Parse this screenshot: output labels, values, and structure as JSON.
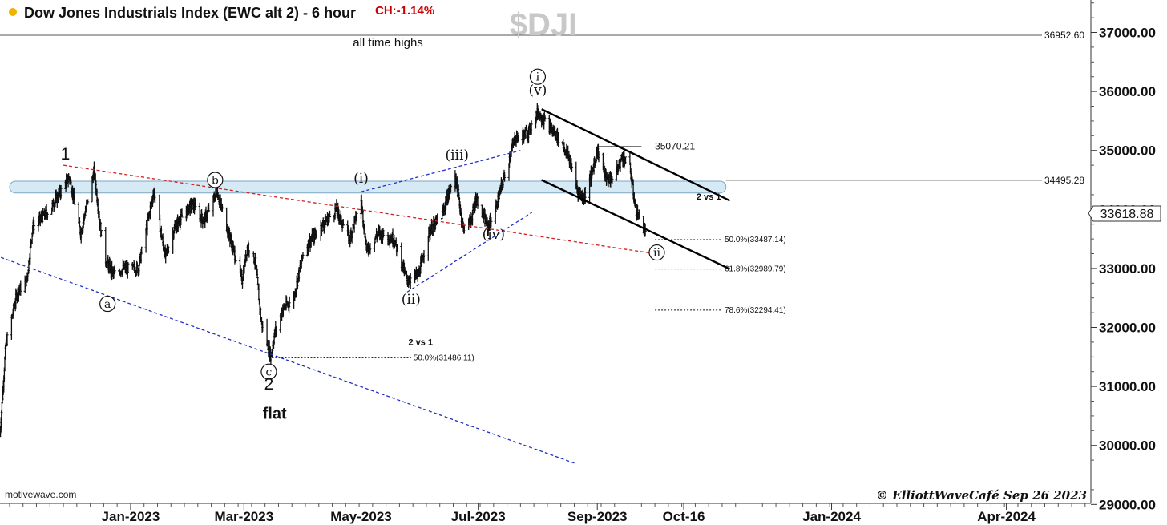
{
  "header": {
    "status_dot_color": "#f0b400",
    "title": "Dow Jones Industrials Index (EWC alt 2) - 6 hour",
    "change": "CH:-1.14%",
    "change_color": "#cc0000",
    "symbol": "$DJI"
  },
  "footer": {
    "source": "motivewave.com",
    "credit": "© ElliottWaveCafé Sep 26 2023"
  },
  "price_badge": "33618.88",
  "chart_data": {
    "type": "candlestick",
    "x_axis": {
      "tick_labels": [
        "Jan-2023",
        "Mar-2023",
        "May-2023",
        "Jul-2023",
        "Sep-2023",
        "Oct-16",
        "Jan-2024",
        "Apr-2024"
      ],
      "range": [
        "2022-10-25",
        "2024-05-20"
      ]
    },
    "y_axis": {
      "range": [
        29000,
        37000
      ],
      "tick_labels": [
        "37000.00",
        "36000.00",
        "35000.00",
        "34000.00",
        "33000.00",
        "32000.00",
        "31000.00",
        "30000.00",
        "29000.00"
      ],
      "position": "right",
      "grid": false
    },
    "price_anchors": [
      {
        "date": "2022-10-25",
        "price": 30200
      },
      {
        "date": "2022-10-28",
        "price": 31700
      },
      {
        "date": "2022-11-03",
        "price": 32600
      },
      {
        "date": "2022-11-08",
        "price": 32800
      },
      {
        "date": "2022-11-11",
        "price": 33700
      },
      {
        "date": "2022-11-20",
        "price": 34000
      },
      {
        "date": "2022-11-30",
        "price": 34550
      },
      {
        "date": "2022-12-06",
        "price": 33600
      },
      {
        "date": "2022-12-13",
        "price": 34650
      },
      {
        "date": "2022-12-18",
        "price": 33200
      },
      {
        "date": "2022-12-23",
        "price": 32900
      },
      {
        "date": "2022-12-28",
        "price": 33000
      },
      {
        "date": "2023-01-05",
        "price": 33000
      },
      {
        "date": "2023-01-13",
        "price": 34300
      },
      {
        "date": "2023-01-19",
        "price": 33200
      },
      {
        "date": "2023-01-24",
        "price": 33700
      },
      {
        "date": "2023-02-02",
        "price": 34100
      },
      {
        "date": "2023-02-08",
        "price": 33800
      },
      {
        "date": "2023-02-15",
        "price": 34300
      },
      {
        "date": "2023-02-21",
        "price": 33600
      },
      {
        "date": "2023-02-28",
        "price": 32800
      },
      {
        "date": "2023-03-03",
        "price": 33400
      },
      {
        "date": "2023-03-07",
        "price": 33100
      },
      {
        "date": "2023-03-10",
        "price": 32100
      },
      {
        "date": "2023-03-15",
        "price": 31500
      },
      {
        "date": "2023-03-17",
        "price": 31900
      },
      {
        "date": "2023-03-21",
        "price": 32300
      },
      {
        "date": "2023-03-27",
        "price": 32500
      },
      {
        "date": "2023-04-01",
        "price": 33300
      },
      {
        "date": "2023-04-10",
        "price": 33700
      },
      {
        "date": "2023-04-18",
        "price": 34000
      },
      {
        "date": "2023-04-25",
        "price": 33500
      },
      {
        "date": "2023-05-01",
        "price": 34150
      },
      {
        "date": "2023-05-04",
        "price": 33300
      },
      {
        "date": "2023-05-10",
        "price": 33600
      },
      {
        "date": "2023-05-18",
        "price": 33500
      },
      {
        "date": "2023-05-25",
        "price": 32800
      },
      {
        "date": "2023-05-31",
        "price": 32900
      },
      {
        "date": "2023-06-05",
        "price": 33600
      },
      {
        "date": "2023-06-12",
        "price": 33900
      },
      {
        "date": "2023-06-19",
        "price": 34600
      },
      {
        "date": "2023-06-23",
        "price": 33700
      },
      {
        "date": "2023-06-27",
        "price": 33800
      },
      {
        "date": "2023-06-30",
        "price": 34200
      },
      {
        "date": "2023-07-06",
        "price": 33700
      },
      {
        "date": "2023-07-10",
        "price": 34000
      },
      {
        "date": "2023-07-14",
        "price": 34500
      },
      {
        "date": "2023-07-20",
        "price": 35200
      },
      {
        "date": "2023-07-27",
        "price": 35300
      },
      {
        "date": "2023-08-01",
        "price": 35650
      },
      {
        "date": "2023-08-07",
        "price": 35400
      },
      {
        "date": "2023-08-12",
        "price": 35200
      },
      {
        "date": "2023-08-17",
        "price": 34900
      },
      {
        "date": "2023-08-22",
        "price": 34300
      },
      {
        "date": "2023-08-25",
        "price": 34200
      },
      {
        "date": "2023-08-29",
        "price": 34600
      },
      {
        "date": "2023-09-01",
        "price": 35000
      },
      {
        "date": "2023-09-06",
        "price": 34500
      },
      {
        "date": "2023-09-10",
        "price": 34550
      },
      {
        "date": "2023-09-14",
        "price": 34900
      },
      {
        "date": "2023-09-18",
        "price": 34700
      },
      {
        "date": "2023-09-21",
        "price": 34000
      },
      {
        "date": "2023-09-26",
        "price": 33600
      }
    ],
    "horizontal_levels": [
      {
        "price": 36952.6,
        "label": "36952.60",
        "note": "all time highs"
      },
      {
        "price": 34495.28,
        "label": "34495.28"
      },
      {
        "price": 35070.21,
        "label": "35070.21"
      }
    ],
    "retracements": [
      {
        "price": 31486.11,
        "label": "50.0%(31486.11)",
        "from": "2023-03-14",
        "to": "2023-05-27"
      },
      {
        "price": 33487.14,
        "label": "50.0%(33487.14)",
        "from": "2023-10-01",
        "to": "2023-11-05"
      },
      {
        "price": 32989.79,
        "label": "61.8%(32989.79)",
        "from": "2023-10-01",
        "to": "2023-11-05"
      },
      {
        "price": 32294.41,
        "label": "78.6%(32294.41)",
        "from": "2023-10-01",
        "to": "2023-11-05"
      }
    ],
    "retracement_notes": [
      {
        "text": "2 vs 1",
        "date": "2023-06-01",
        "price": 31700
      },
      {
        "text": "2 vs 1",
        "date": "2023-10-29",
        "price": 34170
      }
    ],
    "trendlines": [
      {
        "style": "blue-dashed",
        "points": [
          [
            "2022-10-20",
            33250
          ],
          [
            "2023-08-20",
            29700
          ]
        ]
      },
      {
        "style": "blue-dashed",
        "points": [
          [
            "2023-05-01",
            34300
          ],
          [
            "2023-07-23",
            35000
          ]
        ]
      },
      {
        "style": "blue-dashed",
        "points": [
          [
            "2023-05-25",
            32600
          ],
          [
            "2023-07-29",
            33950
          ]
        ]
      },
      {
        "style": "red-dashed",
        "points": [
          [
            "2022-11-27",
            34750
          ],
          [
            "2023-10-01",
            33250
          ]
        ]
      },
      {
        "style": "black-solid",
        "points": [
          [
            "2023-08-03",
            35700
          ],
          [
            "2023-11-09",
            34150
          ]
        ]
      },
      {
        "style": "black-solid",
        "points": [
          [
            "2023-08-03",
            34500
          ],
          [
            "2023-11-09",
            32990
          ]
        ]
      }
    ],
    "resistance_band": {
      "low": 34280,
      "high": 34480,
      "from": "2022-10-30",
      "to": "2023-11-07"
    },
    "wave_labels": [
      {
        "text": "1",
        "date": "2022-11-28",
        "price": 34850,
        "style": "plain"
      },
      {
        "text": "a",
        "date": "2022-12-20",
        "price": 32400,
        "style": "circled"
      },
      {
        "text": "b",
        "date": "2023-02-14",
        "price": 34500,
        "style": "circled"
      },
      {
        "text": "c",
        "date": "2023-03-14",
        "price": 31250,
        "style": "circled"
      },
      {
        "text": "2",
        "date": "2023-03-14",
        "price": 30950,
        "style": "plain"
      },
      {
        "text": "flat",
        "date": "2023-03-17",
        "price": 30450,
        "style": "bold"
      },
      {
        "text": "(i)",
        "date": "2023-05-01",
        "price": 34450,
        "style": "paren"
      },
      {
        "text": "(ii)",
        "date": "2023-05-27",
        "price": 32400,
        "style": "paren"
      },
      {
        "text": "(iii)",
        "date": "2023-06-20",
        "price": 34850,
        "style": "paren"
      },
      {
        "text": "(iv)",
        "date": "2023-07-09",
        "price": 33500,
        "style": "paren"
      },
      {
        "text": "(v)",
        "date": "2023-08-01",
        "price": 35950,
        "style": "paren"
      },
      {
        "text": "i",
        "date": "2023-08-01",
        "price": 36250,
        "style": "circled"
      },
      {
        "text": "ii",
        "date": "2023-10-02",
        "price": 33270,
        "style": "circled"
      }
    ]
  }
}
